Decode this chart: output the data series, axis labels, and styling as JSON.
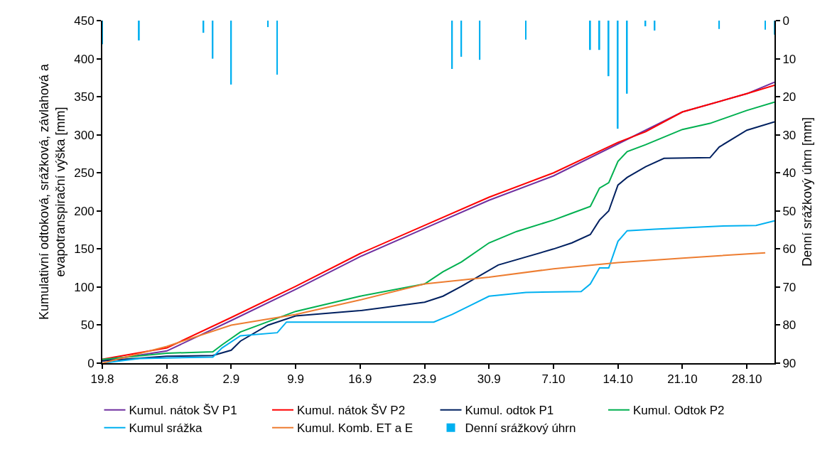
{
  "chart_data": {
    "type": "line",
    "ylabel": "Kumulativní odtoková, srážková, závlahová a\nevapotranspirační výška [mm]",
    "y2label": "Denní srážkový úhrn [mm]",
    "xlim": [
      "--08-19",
      "--10-31"
    ],
    "xticks": [
      {
        "value": "--08-19",
        "label": "19.8"
      },
      {
        "value": "--08-26",
        "label": "26.8"
      },
      {
        "value": "--09-02",
        "label": "2.9"
      },
      {
        "value": "--09-09",
        "label": "9.9"
      },
      {
        "value": "--09-16",
        "label": "16.9"
      },
      {
        "value": "--09-23",
        "label": "23.9"
      },
      {
        "value": "--09-30",
        "label": "30.9"
      },
      {
        "value": "--10-07",
        "label": "7.10"
      },
      {
        "value": "--10-14",
        "label": "14.10"
      },
      {
        "value": "--10-21",
        "label": "21.10"
      },
      {
        "value": "--10-28",
        "label": "28.10"
      }
    ],
    "ylim": [
      0,
      450
    ],
    "yticks": [
      0,
      50,
      100,
      150,
      200,
      250,
      300,
      350,
      400,
      450
    ],
    "y2lim": [
      90,
      0
    ],
    "y2ticks": [
      0,
      10,
      20,
      30,
      40,
      50,
      60,
      70,
      80,
      90
    ],
    "grid": false,
    "legend": "bottom",
    "marker": "none",
    "series": [
      {
        "name": "Kumul. nátok ŠV P1",
        "color": "#7030a0",
        "x": [
          "--08-19",
          "--08-26",
          "--09-02",
          "--09-09",
          "--09-16",
          "--09-23",
          "--09-30",
          "--10-07",
          "--10-14",
          "--10-17",
          "--10-21",
          "--10-28",
          "--10-31"
        ],
        "values": [
          3,
          16,
          56,
          97,
          140,
          177,
          214,
          246,
          288,
          306,
          330,
          354,
          369
        ]
      },
      {
        "name": "Kumul. nátok ŠV P2",
        "color": "#ff0000",
        "x": [
          "--08-19",
          "--08-26",
          "--09-02",
          "--09-09",
          "--09-16",
          "--09-23",
          "--09-30",
          "--10-07",
          "--10-14",
          "--10-17",
          "--10-21",
          "--10-28",
          "--10-31"
        ],
        "values": [
          5,
          20,
          60,
          101,
          144,
          181,
          218,
          250,
          290,
          304,
          330,
          354,
          365
        ]
      },
      {
        "name": "Kumul. odtok P1",
        "color": "#002060",
        "x": [
          "--08-19",
          "--08-26",
          "--08-31",
          "--09-02",
          "--09-03",
          "--09-06",
          "--09-09",
          "--09-16",
          "--09-23",
          "--09-25",
          "--09-27",
          "--09-29",
          "--10-01",
          "--10-07",
          "--10-09",
          "--10-11",
          "--10-12",
          "--10-13",
          "--10-14",
          "--10-15",
          "--10-17",
          "--10-19",
          "--10-24",
          "--10-25",
          "--10-28",
          "--10-31"
        ],
        "values": [
          3,
          9,
          10,
          17,
          29,
          50,
          62,
          69,
          80,
          88,
          101,
          115,
          129,
          150,
          158,
          169,
          188,
          200,
          234,
          244,
          258,
          269,
          270,
          284,
          306,
          317
        ]
      },
      {
        "name": "Kumul. Odtok P2",
        "color": "#00b050",
        "x": [
          "--08-19",
          "--08-26",
          "--08-31",
          "--09-01",
          "--09-03",
          "--09-09",
          "--09-16",
          "--09-23",
          "--09-25",
          "--09-27",
          "--09-30",
          "--10-03",
          "--10-07",
          "--10-09",
          "--10-11",
          "--10-12",
          "--10-13",
          "--10-14",
          "--10-15",
          "--10-17",
          "--10-21",
          "--10-24",
          "--10-28",
          "--10-31"
        ],
        "values": [
          5,
          13,
          15,
          24,
          41,
          68,
          88,
          104,
          120,
          133,
          158,
          173,
          188,
          197,
          206,
          230,
          237,
          265,
          278,
          287,
          307,
          315,
          332,
          343
        ]
      },
      {
        "name": "Kumul srážka",
        "color": "#00b0f0",
        "x": [
          "--08-19",
          "--08-23",
          "--08-31",
          "--09-01",
          "--09-03",
          "--09-07",
          "--09-08",
          "--09-24",
          "--09-26",
          "--09-28",
          "--09-30",
          "--10-04",
          "--10-10",
          "--10-11",
          "--10-12",
          "--10-13",
          "--10-14",
          "--10-15",
          "--10-18",
          "--10-25",
          "--10-29",
          "--10-31"
        ],
        "values": [
          0,
          6,
          8,
          20,
          36,
          40,
          54,
          54,
          64,
          76,
          88,
          93,
          94,
          104,
          125,
          125,
          160,
          174,
          176,
          180,
          181,
          187
        ]
      },
      {
        "name": "Kumul. Komb. ET a E",
        "color": "#ed7d31",
        "x": [
          "--08-19",
          "--08-26",
          "--09-02",
          "--09-09",
          "--09-16",
          "--09-23",
          "--09-30",
          "--10-07",
          "--10-14",
          "--10-21",
          "--10-30"
        ],
        "values": [
          0,
          22,
          50,
          64,
          83,
          104,
          113,
          124,
          132,
          138,
          145
        ]
      },
      {
        "name": "Denní srážkový úhrn",
        "type": "bar",
        "axis": "y2",
        "color": "#00b0f0",
        "x": [
          "--08-19",
          "--08-23",
          "--08-30",
          "--08-31",
          "--09-02",
          "--09-06",
          "--09-07",
          "--09-26",
          "--09-27",
          "--09-29",
          "--10-04",
          "--10-11",
          "--10-12",
          "--10-13",
          "--10-14",
          "--10-15",
          "--10-17",
          "--10-18",
          "--10-25",
          "--10-30",
          "--10-31"
        ],
        "values": [
          6.2,
          5.2,
          3.2,
          10,
          16.8,
          1.7,
          14.2,
          12.7,
          9.5,
          10.3,
          5,
          7.7,
          7.7,
          14.6,
          28.4,
          19.2,
          1.5,
          2.6,
          2.2,
          2.4,
          3.7
        ]
      }
    ]
  }
}
